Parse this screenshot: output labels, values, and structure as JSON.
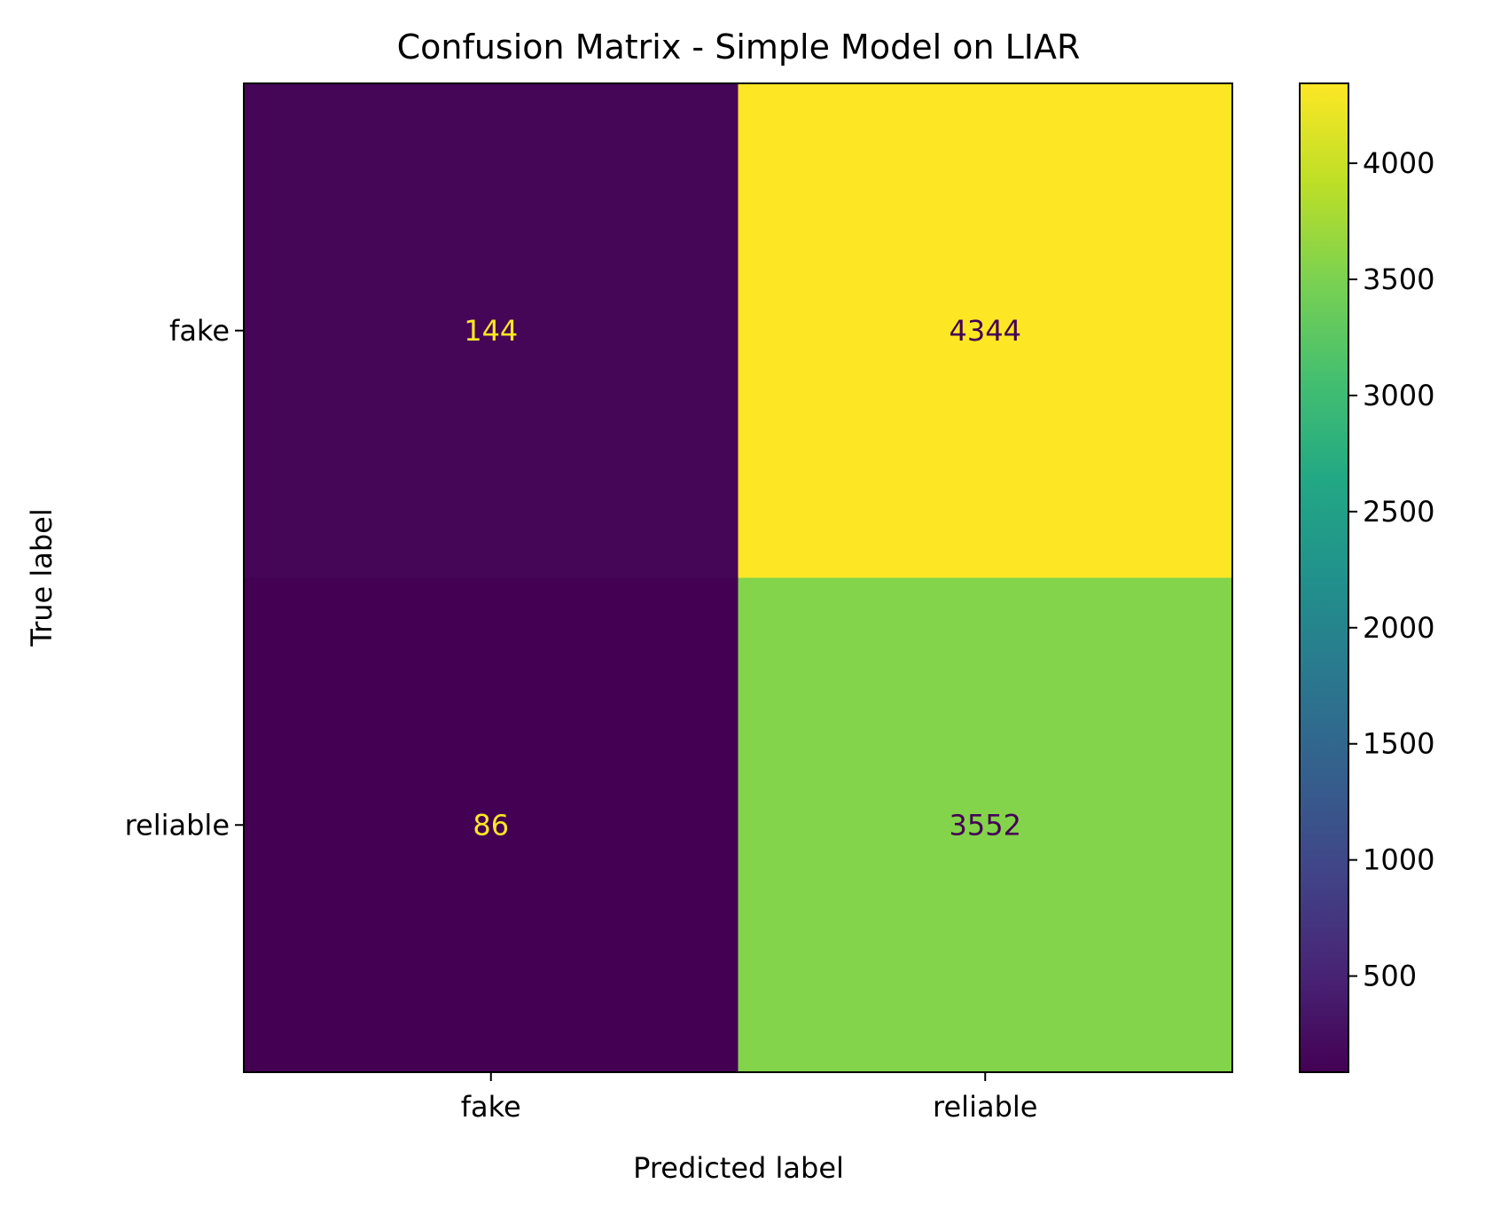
{
  "chart_data": {
    "type": "heatmap",
    "title": "Confusion Matrix - Simple Model on LIAR",
    "xlabel": "Predicted label",
    "ylabel": "True label",
    "x_categories": [
      "fake",
      "reliable"
    ],
    "y_categories": [
      "fake",
      "reliable"
    ],
    "values": [
      [
        144,
        4344
      ],
      [
        86,
        3552
      ]
    ],
    "colormap": "viridis",
    "colorbar": {
      "min": 86,
      "max": 4344,
      "ticks": [
        500,
        1000,
        1500,
        2000,
        2500,
        3000,
        3500,
        4000
      ]
    }
  }
}
